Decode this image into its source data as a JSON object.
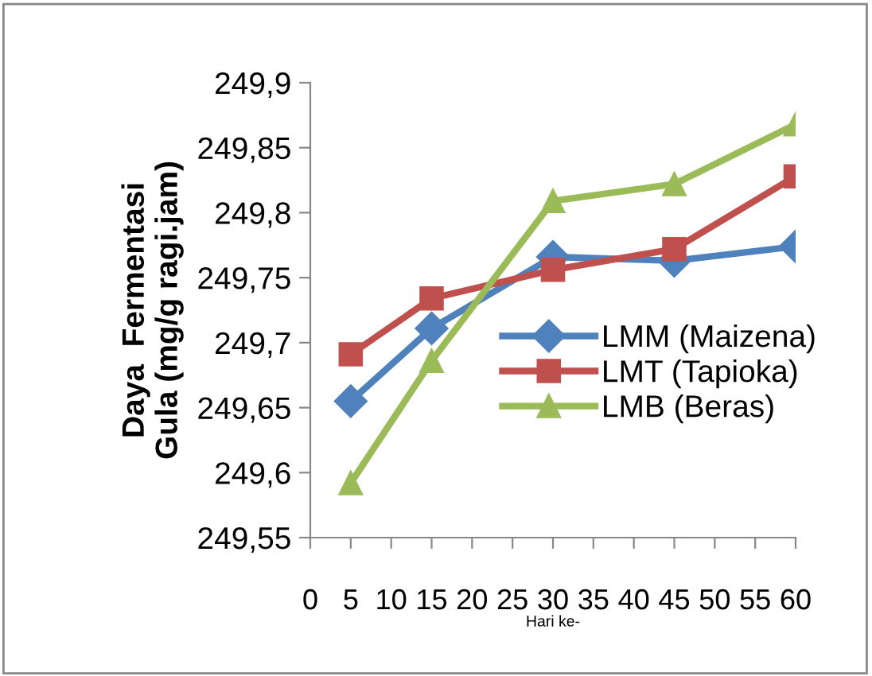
{
  "chart_data": {
    "type": "line",
    "xlabel": "Hari ke-",
    "ylabel": "Daya  Fermentasi\nGula (mg/g ragi.jam)",
    "x": [
      5,
      15,
      30,
      45,
      60
    ],
    "series": [
      {
        "name": "LMM (Maizena)",
        "color": "#4f81bd",
        "marker": "diamond",
        "values": [
          249.655,
          249.711,
          249.766,
          249.763,
          249.774
        ]
      },
      {
        "name": "LMT (Tapioka)",
        "color": "#c0504d",
        "marker": "square",
        "values": [
          249.691,
          249.734,
          249.756,
          249.772,
          249.828
        ]
      },
      {
        "name": "LMB (Beras)",
        "color": "#9bbb59",
        "marker": "triangle",
        "values": [
          249.592,
          249.686,
          249.809,
          249.822,
          249.868
        ]
      }
    ],
    "xlim": [
      0,
      60
    ],
    "xticks": [
      0,
      5,
      10,
      15,
      20,
      25,
      30,
      35,
      40,
      45,
      50,
      55,
      60
    ],
    "ylim": [
      249.55,
      249.9
    ],
    "yticks": [
      {
        "value": 249.55,
        "label": "249,55"
      },
      {
        "value": 249.6,
        "label": "249,6"
      },
      {
        "value": 249.65,
        "label": "249,65"
      },
      {
        "value": 249.7,
        "label": "249,7"
      },
      {
        "value": 249.75,
        "label": "249,75"
      },
      {
        "value": 249.8,
        "label": "249,8"
      },
      {
        "value": 249.85,
        "label": "249,85"
      },
      {
        "value": 249.9,
        "label": "249,9"
      }
    ],
    "grid": false,
    "legend": "right",
    "line_style": "solid"
  }
}
